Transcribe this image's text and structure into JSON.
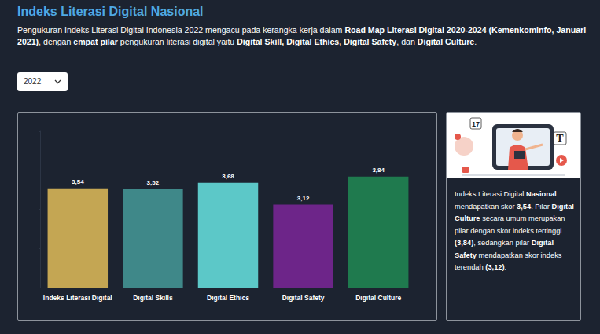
{
  "header": {
    "title": "Indeks Literasi Digital Nasional",
    "intro": [
      {
        "text": "Pengukuran Indeks Literasi Digital Indonesia 2022 mengacu pada kerangka kerja dalam ",
        "bold": false
      },
      {
        "text": "Road Map Literasi Digital 2020-2024 (Kemenkominfo, Januari 2021)",
        "bold": true
      },
      {
        "text": ", dengan ",
        "bold": false
      },
      {
        "text": "empat pilar",
        "bold": true
      },
      {
        "text": " pengukuran literasi digital yaitu ",
        "bold": false
      },
      {
        "text": "Digital Skill, Digital Ethics, Digital Safety",
        "bold": true
      },
      {
        "text": ", dan ",
        "bold": false
      },
      {
        "text": "Digital Culture",
        "bold": true
      },
      {
        "text": ".",
        "bold": false
      }
    ]
  },
  "filter": {
    "selected": "2022"
  },
  "panel": {
    "image_texts": [
      "17",
      "T"
    ],
    "text": [
      {
        "text": "Indeks Literasi Digital ",
        "bold": false
      },
      {
        "text": "Nasional",
        "bold": true
      },
      {
        "text": " mendapatkan skor ",
        "bold": false
      },
      {
        "text": "3,54",
        "bold": true
      },
      {
        "text": ". Pilar ",
        "bold": false
      },
      {
        "text": "Digital Culture",
        "bold": true
      },
      {
        "text": " secara umum merupakan pilar dengan skor indeks tertinggi ",
        "bold": false
      },
      {
        "text": "(3,84)",
        "bold": true
      },
      {
        "text": ", sedangkan pilar ",
        "bold": false
      },
      {
        "text": "Digital Safety",
        "bold": true
      },
      {
        "text": " mendapatkan skor indeks terendah ",
        "bold": false
      },
      {
        "text": "(3,12)",
        "bold": true
      },
      {
        "text": ".",
        "bold": false
      }
    ]
  },
  "chart_data": {
    "type": "bar",
    "categories": [
      "Indeks Literasi Digital",
      "Digital Skills",
      "Digital Ethics",
      "Digital Safety",
      "Digital Culture"
    ],
    "values": [
      3.54,
      3.52,
      3.68,
      3.12,
      3.84
    ],
    "value_labels": [
      "3,54",
      "3,52",
      "3,68",
      "3,12",
      "3,84"
    ],
    "colors": [
      "#c4a653",
      "#3f8889",
      "#5cc8c8",
      "#6d2589",
      "#1f7a4e"
    ],
    "ylim": [
      1,
      5
    ],
    "yticks": [
      1,
      2,
      3,
      4,
      5
    ],
    "grid": false,
    "data_labels": true,
    "tick_labels": "x"
  }
}
